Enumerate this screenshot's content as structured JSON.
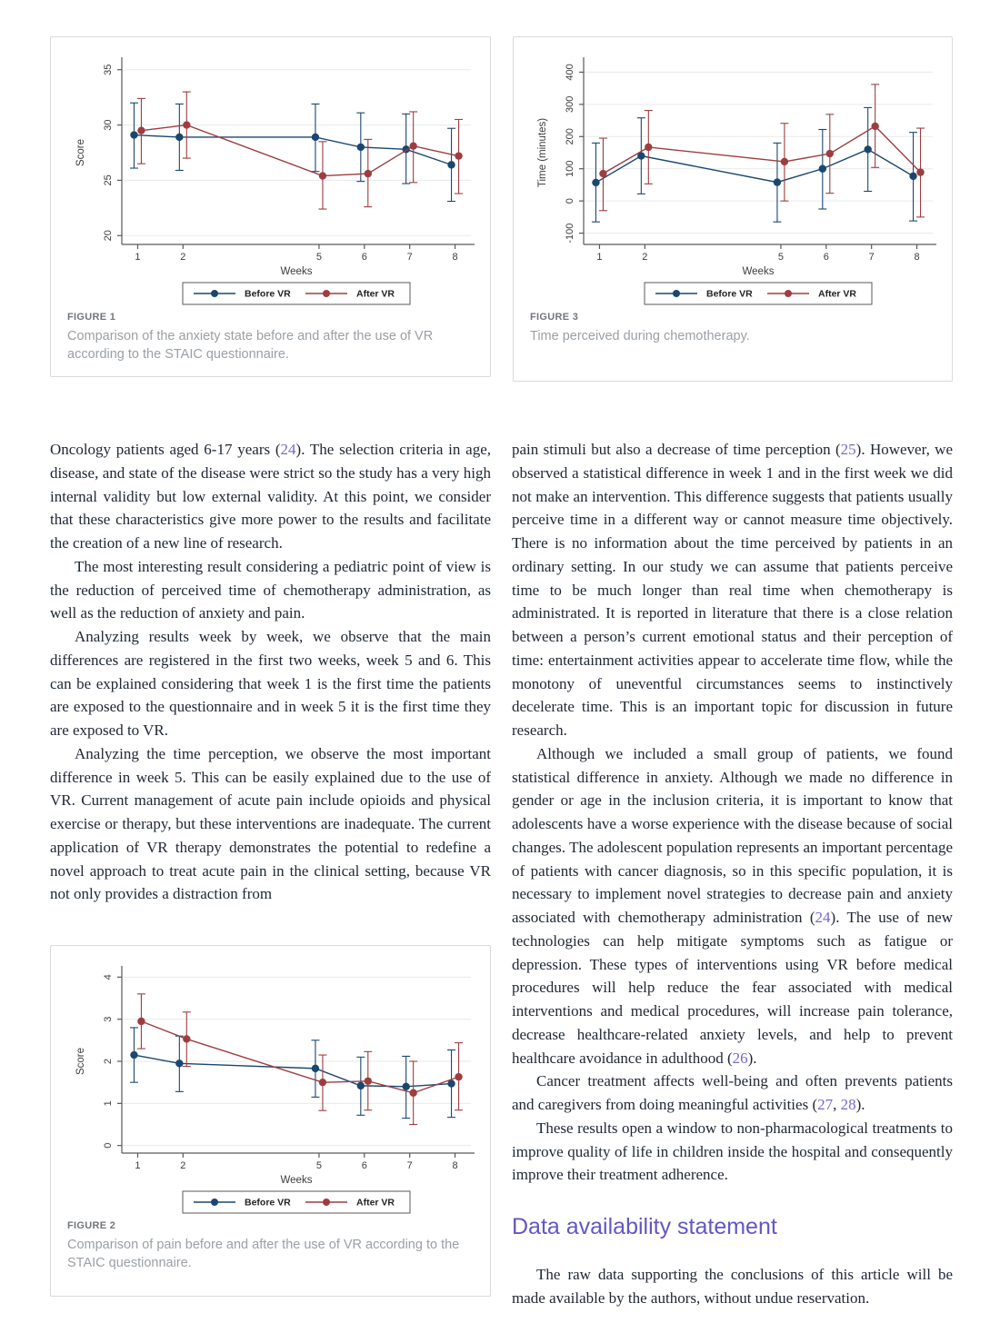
{
  "colors": {
    "before_vr": "#1a476f",
    "after_vr": "#9e3d3f",
    "grid": "#e7eaee",
    "axis": "#58595b",
    "tick_text": "#3c3c3c",
    "legend_text": "#222222",
    "caption_label": "#72767b",
    "caption_text": "#9ba0a5",
    "heading": "#6357c4",
    "cite": "#7668c9",
    "body_text": "#1e2633",
    "figure_border": "#d8dadc"
  },
  "figures": {
    "fig1": {
      "label": "FIGURE 1",
      "caption": "Comparison of the anxiety state before and after the use of VR according to the STAIC questionnaire."
    },
    "fig2": {
      "label": "FIGURE 2",
      "caption": "Comparison of pain before and after the use of VR according to the STAIC questionnaire."
    },
    "fig3": {
      "label": "FIGURE 3",
      "caption": "Time perceived during chemotherapy."
    }
  },
  "chart_data": [
    {
      "figure": "fig1",
      "type": "line",
      "title": "",
      "xlabel": "Weeks",
      "ylabel": "Score",
      "x": [
        1,
        2,
        5,
        6,
        7,
        8
      ],
      "xticks": [
        1,
        2,
        5,
        6,
        7,
        8
      ],
      "xlim": [
        0.65,
        8.35
      ],
      "yticks": [
        20,
        25,
        30,
        35
      ],
      "ylim": [
        19.2,
        35.8
      ],
      "grid": "horizontal",
      "legend_position": "bottom",
      "series": [
        {
          "name": "Before VR",
          "color": "before_vr",
          "offset": -0.08,
          "values": [
            29.1,
            28.9,
            28.9,
            28.0,
            27.8,
            26.4
          ],
          "ci_low": [
            26.1,
            25.9,
            25.8,
            24.9,
            24.7,
            23.1
          ],
          "ci_high": [
            32.0,
            31.9,
            31.9,
            31.1,
            31.0,
            29.7
          ]
        },
        {
          "name": "After VR",
          "color": "after_vr",
          "offset": 0.08,
          "values": [
            29.5,
            30.0,
            25.4,
            25.6,
            28.1,
            27.2
          ],
          "ci_low": [
            26.5,
            27.0,
            22.4,
            22.6,
            24.8,
            23.8
          ],
          "ci_high": [
            32.4,
            33.0,
            28.5,
            28.7,
            31.2,
            30.5
          ]
        }
      ]
    },
    {
      "figure": "fig2",
      "type": "line",
      "title": "",
      "xlabel": "Weeks",
      "ylabel": "Score",
      "x": [
        1,
        2,
        5,
        6,
        7,
        8
      ],
      "xticks": [
        1,
        2,
        5,
        6,
        7,
        8
      ],
      "xlim": [
        0.65,
        8.35
      ],
      "yticks": [
        0,
        1,
        2,
        3,
        4
      ],
      "ylim": [
        -0.18,
        4.18
      ],
      "grid": "horizontal",
      "legend_position": "bottom",
      "series": [
        {
          "name": "Before VR",
          "color": "before_vr",
          "offset": -0.08,
          "values": [
            2.15,
            1.95,
            1.83,
            1.42,
            1.4,
            1.47
          ],
          "ci_low": [
            1.5,
            1.28,
            1.15,
            0.72,
            0.65,
            0.67
          ],
          "ci_high": [
            2.8,
            2.6,
            2.5,
            2.1,
            2.12,
            2.27
          ]
        },
        {
          "name": "After VR",
          "color": "after_vr",
          "offset": 0.08,
          "values": [
            2.95,
            2.53,
            1.5,
            1.53,
            1.25,
            1.63
          ],
          "ci_low": [
            2.3,
            1.88,
            0.83,
            0.84,
            0.5,
            0.84
          ],
          "ci_high": [
            3.6,
            3.17,
            2.15,
            2.23,
            2.0,
            2.44
          ]
        }
      ]
    },
    {
      "figure": "fig3",
      "type": "line",
      "title": "",
      "xlabel": "Weeks",
      "ylabel": "Time (minutes)",
      "x": [
        1,
        2,
        5,
        6,
        7,
        8
      ],
      "xticks": [
        1,
        2,
        5,
        6,
        7,
        8
      ],
      "xlim": [
        0.65,
        8.35
      ],
      "yticks": [
        -100,
        0,
        100,
        200,
        300,
        400
      ],
      "ylim": [
        -135,
        435
      ],
      "grid": "horizontal",
      "legend_position": "bottom",
      "series": [
        {
          "name": "Before VR",
          "color": "before_vr",
          "offset": -0.08,
          "values": [
            57,
            140,
            58,
            100,
            160,
            77
          ],
          "ci_low": [
            -65,
            22,
            -65,
            -25,
            30,
            -62
          ],
          "ci_high": [
            180,
            258,
            180,
            222,
            290,
            213
          ]
        },
        {
          "name": "After VR",
          "color": "after_vr",
          "offset": 0.08,
          "values": [
            85,
            167,
            122,
            147,
            232,
            89
          ],
          "ci_low": [
            -30,
            53,
            0,
            24,
            104,
            -50
          ],
          "ci_high": [
            195,
            281,
            241,
            269,
            362,
            226
          ]
        }
      ]
    }
  ],
  "columns": {
    "left": {
      "paragraphs": [
        {
          "indent": false,
          "segments": [
            {
              "t": "Oncology patients aged 6-17 years ("
            },
            {
              "c": "24"
            },
            {
              "t": "). The selection criteria in age, disease, and state of the disease were strict so the study has a very high internal validity but low external validity. At this point, we consider that these characteristics give more power to the results and facilitate the creation of a new line of research."
            }
          ]
        },
        {
          "indent": true,
          "segments": [
            {
              "t": "The most interesting result considering a pediatric point of view is the reduction of perceived time of chemotherapy administration, as well as the reduction of anxiety and pain."
            }
          ]
        },
        {
          "indent": true,
          "segments": [
            {
              "t": "Analyzing results week by week, we observe that the main differences are registered in the first two weeks, week 5 and 6. This can be explained considering that week 1 is the first time the patients are exposed to the questionnaire and in week 5 it is the first time they are exposed to VR."
            }
          ]
        },
        {
          "indent": true,
          "segments": [
            {
              "t": "Analyzing the time perception, we observe the most important difference in week 5. This can be easily explained due to the use of VR. Current management of acute pain include opioids and physical exercise or therapy, but these interventions are inadequate. The current application of VR therapy demonstrates the potential to redefine a novel approach to treat acute pain in the clinical setting, because VR not only provides a distraction from"
            }
          ]
        }
      ]
    },
    "right": {
      "paragraphs": [
        {
          "indent": false,
          "segments": [
            {
              "t": "pain stimuli but also a decrease of time perception ("
            },
            {
              "c": "25"
            },
            {
              "t": "). However, we observed a statistical difference in week 1 and in the first week we did not make an intervention. This difference suggests that patients usually perceive time in a different way or cannot measure time objectively. There is no information about the time perceived by patients in an ordinary setting. In our study we can assume that patients perceive time to be much longer than real time when chemotherapy is administrated. It is reported in literature that there is a close relation between a person’s current emotional status and their perception of time: entertainment activities appear to accelerate time flow, while the monotony of uneventful circumstances seems to instinctively decelerate time. This is an important topic for discussion in future research."
            }
          ]
        },
        {
          "indent": true,
          "segments": [
            {
              "t": "Although we included a small group of patients, we found statistical difference in anxiety. Although we made no difference in gender or age in the inclusion criteria, it is important to know that adolescents have a worse experience with the disease because of social changes. The adolescent population represents an important percentage of patients with cancer diagnosis, so in this specific population, it is necessary to implement novel strategies to decrease pain and anxiety associated with chemotherapy administration ("
            },
            {
              "c": "24"
            },
            {
              "t": "). The use of new technologies can help mitigate symptoms such as fatigue or depression. These types of interventions using VR before medical procedures will help reduce the fear associated with medical interventions and medical procedures, will increase pain tolerance, decrease healthcare-related anxiety levels, and help to prevent healthcare avoidance in adulthood ("
            },
            {
              "c": "26"
            },
            {
              "t": ")."
            }
          ]
        },
        {
          "indent": true,
          "segments": [
            {
              "t": "Cancer treatment affects well-being and often prevents patients and caregivers from doing meaningful activities ("
            },
            {
              "c": "27"
            },
            {
              "t": ", "
            },
            {
              "c": "28"
            },
            {
              "t": ")."
            }
          ]
        },
        {
          "indent": true,
          "segments": [
            {
              "t": "These results open a window to non-pharmacological treatments to improve quality of life in children inside the hospital and consequently improve their treatment adherence."
            }
          ]
        }
      ]
    }
  },
  "section": {
    "heading": "Data availability statement",
    "paragraphs": [
      {
        "indent": true,
        "segments": [
          {
            "t": "The raw data supporting the conclusions of this article will be made available by the authors, without undue reservation."
          }
        ]
      }
    ]
  }
}
